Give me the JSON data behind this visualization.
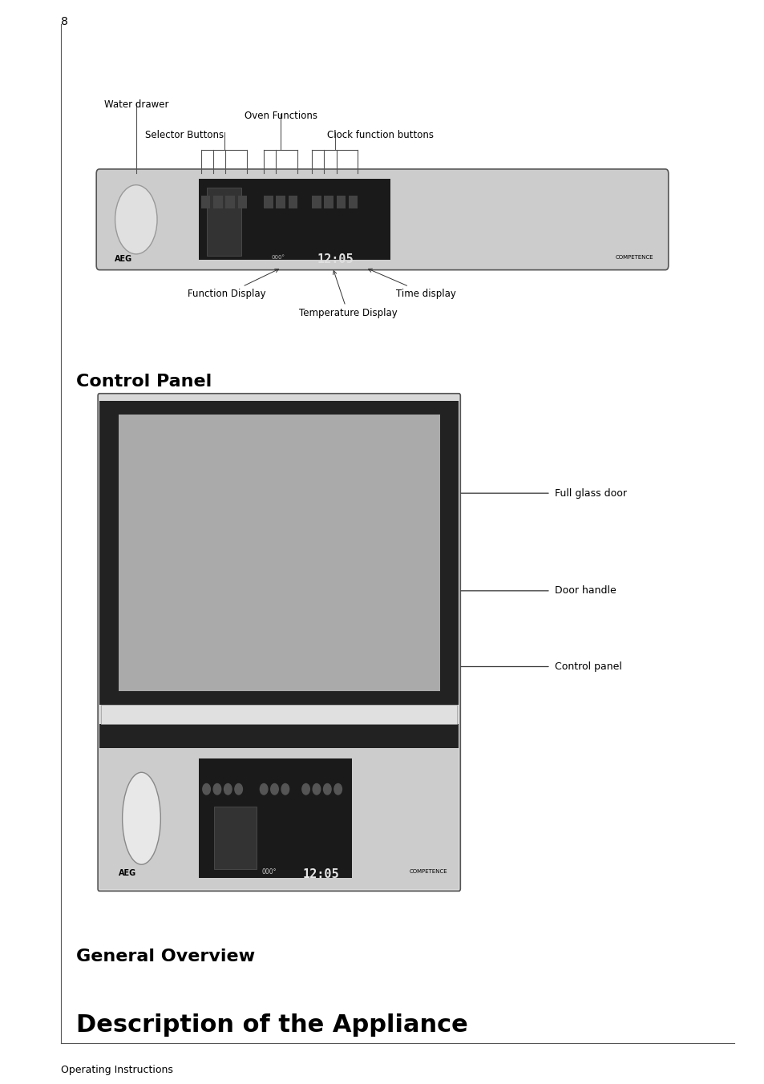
{
  "page_header": "Operating Instructions",
  "title": "Description of the Appliance",
  "section1": "General Overview",
  "section2": "Control Panel",
  "page_number": "8",
  "bg_color": "#ffffff",
  "text_color": "#000000",
  "line_color": "#333333"
}
